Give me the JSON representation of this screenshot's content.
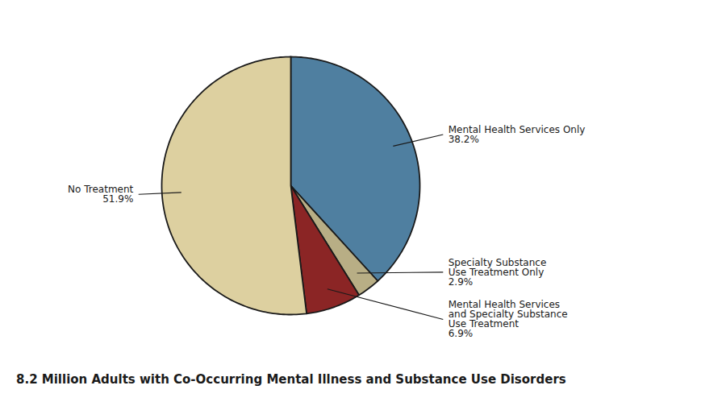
{
  "chart_data": {
    "type": "pie",
    "title": "8.2 Million Adults with Co-Occurring Mental Illness and Substance Use Disorders",
    "categories": [
      "Mental Health Services Only",
      "Specialty Substance\nUse Treatment Only",
      "Mental Health Services\nand Specialty Substance\nUse Treatment",
      "No Treatment"
    ],
    "values": [
      38.2,
      2.9,
      6.9,
      51.9
    ],
    "value_labels": [
      "38.2%",
      "2.9%",
      "6.9%",
      "51.9%"
    ],
    "colors": [
      "#4f7fa0",
      "#b8ae85",
      "#8b2525",
      "#ddd0a0"
    ],
    "data_labels": true
  }
}
